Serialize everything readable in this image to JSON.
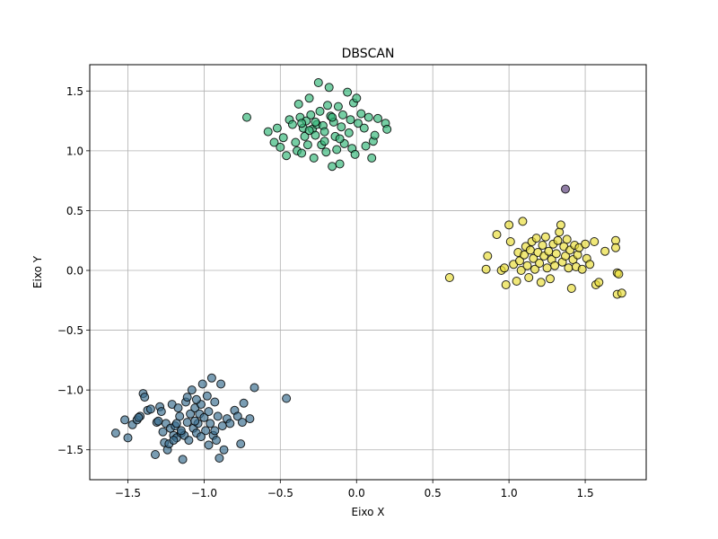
{
  "chart_data": {
    "type": "scatter",
    "title": "DBSCAN",
    "xlabel": "Eixo X",
    "ylabel": "Eixo Y",
    "xlim": [
      -1.75,
      1.9
    ],
    "ylim": [
      -1.75,
      1.72
    ],
    "x_ticks": [
      -1.5,
      -1.0,
      -0.5,
      0.0,
      0.5,
      1.0,
      1.5
    ],
    "x_tick_labels": [
      "−1.5",
      "−1.0",
      "−0.5",
      "0.0",
      "0.5",
      "1.0",
      "1.5"
    ],
    "y_ticks": [
      -1.5,
      -1.0,
      -0.5,
      0.0,
      0.5,
      1.0,
      1.5
    ],
    "y_tick_labels": [
      "−1.5",
      "−1.0",
      "−0.5",
      "0.0",
      "0.5",
      "1.0",
      "1.5"
    ],
    "grid": true,
    "series": [
      {
        "color": "#3b6e8f",
        "points": [
          [
            -1.58,
            -1.36
          ],
          [
            -1.52,
            -1.25
          ],
          [
            -1.5,
            -1.4
          ],
          [
            -1.47,
            -1.29
          ],
          [
            -1.44,
            -1.25
          ],
          [
            -1.42,
            -1.22
          ],
          [
            -1.4,
            -1.03
          ],
          [
            -1.39,
            -1.06
          ],
          [
            -1.37,
            -1.17
          ],
          [
            -1.35,
            -1.16
          ],
          [
            -1.32,
            -1.54
          ],
          [
            -1.31,
            -1.27
          ],
          [
            -1.3,
            -1.26
          ],
          [
            -1.29,
            -1.14
          ],
          [
            -1.28,
            -1.18
          ],
          [
            -1.26,
            -1.44
          ],
          [
            -1.25,
            -1.28
          ],
          [
            -1.24,
            -1.5
          ],
          [
            -1.23,
            -1.45
          ],
          [
            -1.22,
            -1.32
          ],
          [
            -1.21,
            -1.12
          ],
          [
            -1.2,
            -1.38
          ],
          [
            -1.19,
            -1.3
          ],
          [
            -1.18,
            -1.4
          ],
          [
            -1.17,
            -1.15
          ],
          [
            -1.16,
            -1.22
          ],
          [
            -1.15,
            -1.36
          ],
          [
            -1.14,
            -1.58
          ],
          [
            -1.13,
            -1.38
          ],
          [
            -1.12,
            -1.1
          ],
          [
            -1.11,
            -1.27
          ],
          [
            -1.1,
            -1.42
          ],
          [
            -1.09,
            -1.2
          ],
          [
            -1.08,
            -1.0
          ],
          [
            -1.07,
            -1.32
          ],
          [
            -1.06,
            -1.15
          ],
          [
            -1.05,
            -1.36
          ],
          [
            -1.04,
            -1.28
          ],
          [
            -1.03,
            -1.2
          ],
          [
            -1.02,
            -1.12
          ],
          [
            -1.01,
            -0.95
          ],
          [
            -1.0,
            -1.23
          ],
          [
            -0.99,
            -1.34
          ],
          [
            -0.98,
            -1.05
          ],
          [
            -0.97,
            -1.18
          ],
          [
            -0.96,
            -1.28
          ],
          [
            -0.95,
            -0.9
          ],
          [
            -0.94,
            -1.38
          ],
          [
            -0.93,
            -1.1
          ],
          [
            -0.92,
            -1.42
          ],
          [
            -0.91,
            -1.22
          ],
          [
            -0.9,
            -1.57
          ],
          [
            -0.89,
            -0.95
          ],
          [
            -0.88,
            -1.3
          ],
          [
            -0.87,
            -1.5
          ],
          [
            -0.85,
            -1.24
          ],
          [
            -0.83,
            -1.28
          ],
          [
            -0.8,
            -1.17
          ],
          [
            -0.78,
            -1.22
          ],
          [
            -0.76,
            -1.45
          ],
          [
            -0.75,
            -1.27
          ],
          [
            -0.74,
            -1.11
          ],
          [
            -0.7,
            -1.24
          ],
          [
            -0.67,
            -0.98
          ],
          [
            -0.46,
            -1.07
          ],
          [
            -1.43,
            -1.23
          ],
          [
            -1.27,
            -1.35
          ],
          [
            -1.18,
            -1.28
          ],
          [
            -1.06,
            -1.26
          ],
          [
            -0.97,
            -1.46
          ],
          [
            -1.15,
            -1.34
          ],
          [
            -1.02,
            -1.39
          ],
          [
            -0.93,
            -1.34
          ],
          [
            -1.11,
            -1.06
          ],
          [
            -1.2,
            -1.42
          ],
          [
            -1.05,
            -1.08
          ]
        ]
      },
      {
        "color": "#35b779",
        "points": [
          [
            -0.72,
            1.28
          ],
          [
            -0.58,
            1.16
          ],
          [
            -0.54,
            1.07
          ],
          [
            -0.52,
            1.19
          ],
          [
            -0.5,
            1.03
          ],
          [
            -0.48,
            1.11
          ],
          [
            -0.46,
            0.96
          ],
          [
            -0.44,
            1.26
          ],
          [
            -0.42,
            1.22
          ],
          [
            -0.4,
            1.07
          ],
          [
            -0.39,
            1.0
          ],
          [
            -0.38,
            1.39
          ],
          [
            -0.37,
            1.28
          ],
          [
            -0.36,
            0.98
          ],
          [
            -0.35,
            1.19
          ],
          [
            -0.34,
            1.12
          ],
          [
            -0.33,
            1.25
          ],
          [
            -0.32,
            1.05
          ],
          [
            -0.31,
            1.44
          ],
          [
            -0.3,
            1.3
          ],
          [
            -0.29,
            1.18
          ],
          [
            -0.28,
            0.94
          ],
          [
            -0.27,
            1.13
          ],
          [
            -0.26,
            1.22
          ],
          [
            -0.25,
            1.57
          ],
          [
            -0.24,
            1.33
          ],
          [
            -0.23,
            1.05
          ],
          [
            -0.22,
            1.21
          ],
          [
            -0.21,
            1.16
          ],
          [
            -0.2,
            0.99
          ],
          [
            -0.19,
            1.38
          ],
          [
            -0.18,
            1.53
          ],
          [
            -0.17,
            1.29
          ],
          [
            -0.16,
            0.87
          ],
          [
            -0.15,
            1.24
          ],
          [
            -0.14,
            1.12
          ],
          [
            -0.13,
            1.01
          ],
          [
            -0.12,
            1.37
          ],
          [
            -0.11,
            0.89
          ],
          [
            -0.1,
            1.2
          ],
          [
            -0.09,
            1.3
          ],
          [
            -0.08,
            1.06
          ],
          [
            -0.06,
            1.49
          ],
          [
            -0.05,
            1.15
          ],
          [
            -0.04,
            1.26
          ],
          [
            -0.03,
            1.02
          ],
          [
            -0.02,
            1.4
          ],
          [
            -0.01,
            0.97
          ],
          [
            0.0,
            1.44
          ],
          [
            0.01,
            1.23
          ],
          [
            0.03,
            1.31
          ],
          [
            0.05,
            1.19
          ],
          [
            0.06,
            1.04
          ],
          [
            0.08,
            1.28
          ],
          [
            0.1,
            0.94
          ],
          [
            0.11,
            1.08
          ],
          [
            0.12,
            1.13
          ],
          [
            0.14,
            1.27
          ],
          [
            0.19,
            1.23
          ],
          [
            0.2,
            1.18
          ],
          [
            -0.36,
            1.23
          ],
          [
            -0.27,
            1.24
          ],
          [
            -0.16,
            1.28
          ],
          [
            -0.11,
            1.1
          ],
          [
            -0.21,
            1.08
          ],
          [
            -0.31,
            1.17
          ]
        ]
      },
      {
        "color": "#e9dd3a",
        "points": [
          [
            0.61,
            -0.06
          ],
          [
            0.85,
            0.01
          ],
          [
            0.86,
            0.12
          ],
          [
            0.92,
            0.3
          ],
          [
            0.95,
            0.0
          ],
          [
            0.97,
            0.02
          ],
          [
            0.98,
            -0.12
          ],
          [
            1.0,
            0.38
          ],
          [
            1.01,
            0.24
          ],
          [
            1.03,
            0.05
          ],
          [
            1.05,
            -0.09
          ],
          [
            1.06,
            0.15
          ],
          [
            1.07,
            0.08
          ],
          [
            1.08,
            0.0
          ],
          [
            1.09,
            0.41
          ],
          [
            1.1,
            0.13
          ],
          [
            1.11,
            0.2
          ],
          [
            1.12,
            0.04
          ],
          [
            1.13,
            -0.06
          ],
          [
            1.14,
            0.17
          ],
          [
            1.15,
            0.24
          ],
          [
            1.16,
            0.1
          ],
          [
            1.17,
            0.01
          ],
          [
            1.18,
            0.27
          ],
          [
            1.19,
            0.15
          ],
          [
            1.2,
            0.06
          ],
          [
            1.21,
            -0.1
          ],
          [
            1.22,
            0.21
          ],
          [
            1.23,
            0.12
          ],
          [
            1.24,
            0.28
          ],
          [
            1.25,
            0.02
          ],
          [
            1.26,
            0.16
          ],
          [
            1.27,
            -0.07
          ],
          [
            1.28,
            0.09
          ],
          [
            1.29,
            0.22
          ],
          [
            1.3,
            0.04
          ],
          [
            1.31,
            0.14
          ],
          [
            1.32,
            0.25
          ],
          [
            1.33,
            0.32
          ],
          [
            1.34,
            0.38
          ],
          [
            1.35,
            0.07
          ],
          [
            1.36,
            0.2
          ],
          [
            1.37,
            0.12
          ],
          [
            1.38,
            0.26
          ],
          [
            1.39,
            0.02
          ],
          [
            1.4,
            0.17
          ],
          [
            1.41,
            -0.15
          ],
          [
            1.42,
            0.09
          ],
          [
            1.43,
            0.21
          ],
          [
            1.44,
            0.03
          ],
          [
            1.45,
            0.13
          ],
          [
            1.46,
            0.19
          ],
          [
            1.48,
            0.01
          ],
          [
            1.5,
            0.22
          ],
          [
            1.51,
            0.1
          ],
          [
            1.53,
            0.05
          ],
          [
            1.56,
            0.24
          ],
          [
            1.57,
            -0.12
          ],
          [
            1.59,
            -0.1
          ],
          [
            1.63,
            0.16
          ],
          [
            1.7,
            0.25
          ],
          [
            1.7,
            0.19
          ],
          [
            1.71,
            -0.02
          ],
          [
            1.71,
            -0.2
          ],
          [
            1.72,
            -0.03
          ],
          [
            1.74,
            -0.19
          ]
        ]
      },
      {
        "color": "#5b3f7a",
        "points": [
          [
            1.37,
            0.68
          ]
        ]
      }
    ]
  }
}
